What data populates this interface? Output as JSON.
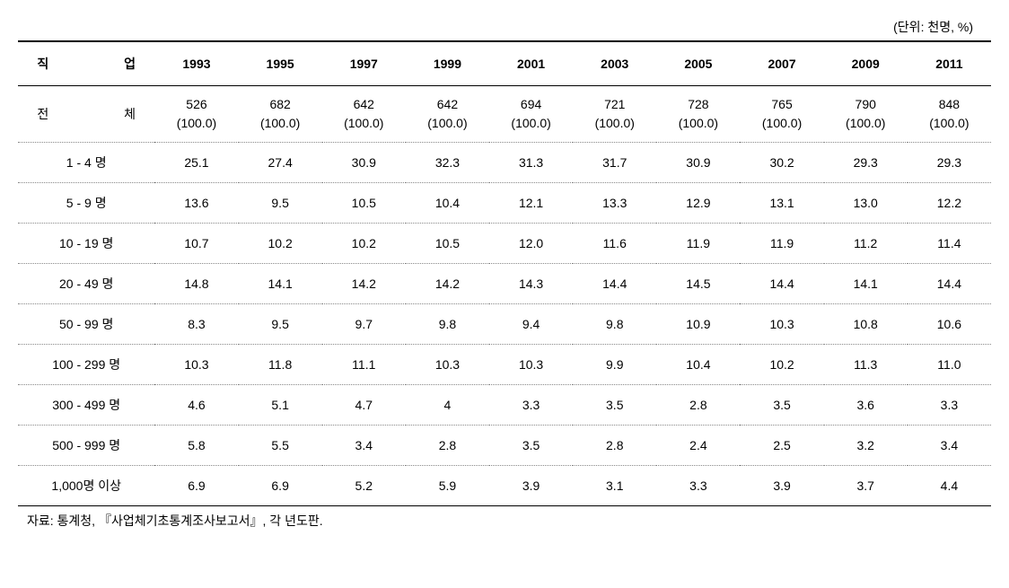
{
  "unit_label": "(단위: 천명, %)",
  "header": {
    "label_col": "직 업",
    "years": [
      "1993",
      "1995",
      "1997",
      "1999",
      "2001",
      "2003",
      "2005",
      "2007",
      "2009",
      "2011"
    ]
  },
  "total_row": {
    "label": "전 체",
    "values": [
      "526",
      "682",
      "642",
      "642",
      "694",
      "721",
      "728",
      "765",
      "790",
      "848"
    ],
    "pct": [
      "(100.0)",
      "(100.0)",
      "(100.0)",
      "(100.0)",
      "(100.0)",
      "(100.0)",
      "(100.0)",
      "(100.0)",
      "(100.0)",
      "(100.0)"
    ]
  },
  "rows": [
    {
      "label": "1 - 4 명",
      "values": [
        "25.1",
        "27.4",
        "30.9",
        "32.3",
        "31.3",
        "31.7",
        "30.9",
        "30.2",
        "29.3",
        "29.3"
      ]
    },
    {
      "label": "5 - 9 명",
      "values": [
        "13.6",
        "9.5",
        "10.5",
        "10.4",
        "12.1",
        "13.3",
        "12.9",
        "13.1",
        "13.0",
        "12.2"
      ]
    },
    {
      "label": "10 - 19 명",
      "values": [
        "10.7",
        "10.2",
        "10.2",
        "10.5",
        "12.0",
        "11.6",
        "11.9",
        "11.9",
        "11.2",
        "11.4"
      ]
    },
    {
      "label": "20 - 49 명",
      "values": [
        "14.8",
        "14.1",
        "14.2",
        "14.2",
        "14.3",
        "14.4",
        "14.5",
        "14.4",
        "14.1",
        "14.4"
      ]
    },
    {
      "label": "50 - 99 명",
      "values": [
        "8.3",
        "9.5",
        "9.7",
        "9.8",
        "9.4",
        "9.8",
        "10.9",
        "10.3",
        "10.8",
        "10.6"
      ]
    },
    {
      "label": "100 - 299 명",
      "values": [
        "10.3",
        "11.8",
        "11.1",
        "10.3",
        "10.3",
        "9.9",
        "10.4",
        "10.2",
        "11.3",
        "11.0"
      ]
    },
    {
      "label": "300 - 499 명",
      "values": [
        "4.6",
        "5.1",
        "4.7",
        "4",
        "3.3",
        "3.5",
        "2.8",
        "3.5",
        "3.6",
        "3.3"
      ]
    },
    {
      "label": "500 - 999 명",
      "values": [
        "5.8",
        "5.5",
        "3.4",
        "2.8",
        "3.5",
        "2.8",
        "2.4",
        "2.5",
        "3.2",
        "3.4"
      ]
    },
    {
      "label": "1,000명 이상",
      "values": [
        "6.9",
        "6.9",
        "5.2",
        "5.9",
        "3.9",
        "3.1",
        "3.3",
        "3.9",
        "3.7",
        "4.4"
      ]
    }
  ],
  "source": "자료: 통계청, 『사업체기초통계조사보고서』, 각 년도판."
}
